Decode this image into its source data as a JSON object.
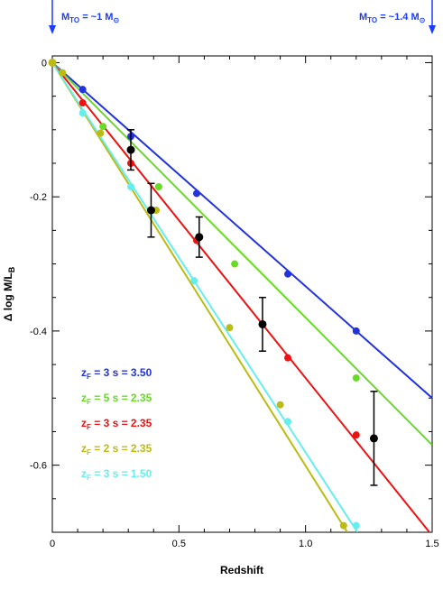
{
  "chart_data": {
    "type": "line",
    "xlabel": "Redshift",
    "ylabel": "Δ log M/L",
    "ylabel_sub": "B",
    "xlim": [
      0,
      1.5
    ],
    "ylim": [
      -0.7,
      0.01
    ],
    "xticks": [
      0,
      0.5,
      1.0,
      1.5
    ],
    "xtick_labels": [
      "0",
      "0.5",
      "1.0",
      "1.5"
    ],
    "yticks": [
      0,
      -0.2,
      -0.4,
      -0.6
    ],
    "ytick_labels": [
      "0",
      "-0.2",
      "-0.4",
      "-0.6"
    ],
    "annotations": [
      {
        "prefix": "M",
        "sub": "TO",
        "mid": " = ~1 M",
        "sub2": "⊙",
        "x": 0.0
      },
      {
        "prefix": "M",
        "sub": "TO",
        "mid": " = ~1.4 M",
        "sub2": "⊙",
        "x": 1.5
      }
    ],
    "series": [
      {
        "zf": "3",
        "s": "3.50",
        "color": "#2233dd",
        "line": [
          [
            0,
            0
          ],
          [
            1.5,
            -0.5
          ]
        ],
        "points": [
          [
            0.12,
            -0.04
          ],
          [
            0.31,
            -0.11
          ],
          [
            0.57,
            -0.195
          ],
          [
            0.93,
            -0.315
          ],
          [
            1.2,
            -0.4
          ]
        ]
      },
      {
        "zf": "5",
        "s": "2.35",
        "color": "#66dd22",
        "line": [
          [
            0,
            0
          ],
          [
            1.5,
            -0.57
          ]
        ],
        "points": [
          [
            0.2,
            -0.095
          ],
          [
            0.42,
            -0.185
          ],
          [
            0.72,
            -0.3
          ],
          [
            1.2,
            -0.47
          ]
        ]
      },
      {
        "zf": "3",
        "s": "2.35",
        "color": "#ee1111",
        "line": [
          [
            0,
            0
          ],
          [
            1.5,
            -0.705
          ]
        ],
        "points": [
          [
            0.12,
            -0.06
          ],
          [
            0.31,
            -0.15
          ],
          [
            0.57,
            -0.265
          ],
          [
            0.93,
            -0.44
          ],
          [
            1.2,
            -0.555
          ]
        ]
      },
      {
        "zf": "2",
        "s": "2.35",
        "color": "#bbbb11",
        "line": [
          [
            0,
            0
          ],
          [
            1.165,
            -0.7
          ]
        ],
        "points": [
          [
            0.04,
            -0.015
          ],
          [
            0.19,
            -0.105
          ],
          [
            0.41,
            -0.22
          ],
          [
            0.7,
            -0.395
          ],
          [
            0.9,
            -0.51
          ],
          [
            1.15,
            -0.69
          ]
        ]
      },
      {
        "zf": "3",
        "s": "1.50",
        "color": "#66eeee",
        "line": [
          [
            0,
            0
          ],
          [
            1.205,
            -0.7
          ]
        ],
        "points": [
          [
            0.12,
            -0.075
          ],
          [
            0.31,
            -0.185
          ],
          [
            0.56,
            -0.325
          ],
          [
            0.93,
            -0.535
          ],
          [
            1.2,
            -0.69
          ]
        ]
      }
    ],
    "observations": [
      {
        "x": 0.31,
        "y": -0.13,
        "err": 0.03
      },
      {
        "x": 0.39,
        "y": -0.22,
        "err": 0.04
      },
      {
        "x": 0.58,
        "y": -0.26,
        "err": 0.03
      },
      {
        "x": 0.83,
        "y": -0.39,
        "err": 0.04
      },
      {
        "x": 1.27,
        "y": -0.56,
        "err": 0.07
      }
    ]
  }
}
